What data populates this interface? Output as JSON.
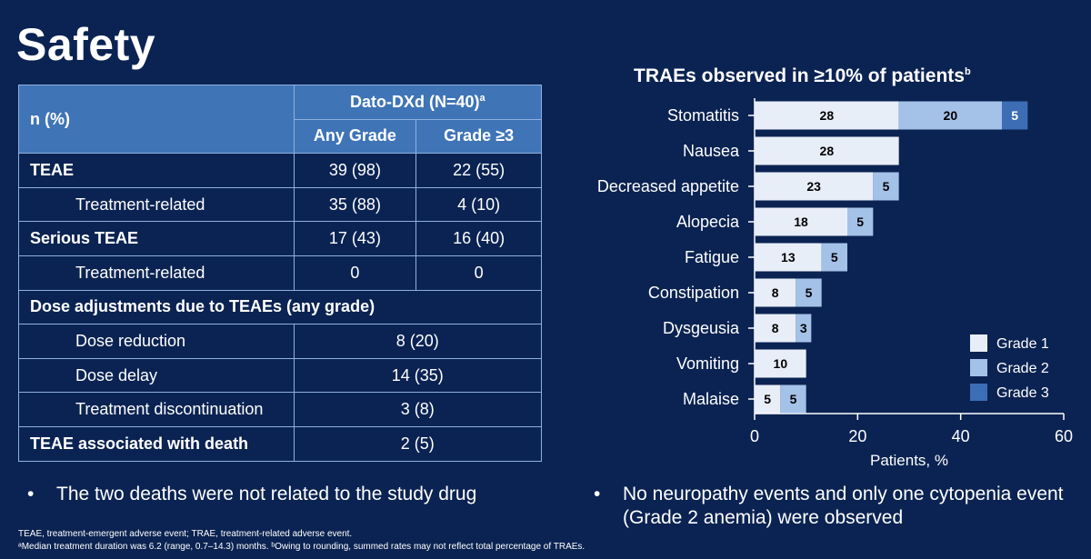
{
  "title": "Safety",
  "table": {
    "header_col": "n (%)",
    "group_header": "Dato-DXd (N=40)",
    "group_header_sup": "a",
    "sub_headers": [
      "Any Grade",
      "Grade ≥3"
    ],
    "rows": [
      {
        "label": "TEAE",
        "style": "bold",
        "values": [
          "39 (98)",
          "22 (55)"
        ]
      },
      {
        "label": "Treatment-related",
        "style": "indent",
        "values": [
          "35 (88)",
          "4 (10)"
        ]
      },
      {
        "label": "Serious TEAE",
        "style": "bold",
        "values": [
          "17 (43)",
          "16 (40)"
        ]
      },
      {
        "label": "Treatment-related",
        "style": "indent",
        "values": [
          "0",
          "0"
        ]
      },
      {
        "label": "Dose adjustments due to TEAEs (any grade)",
        "style": "section",
        "values": []
      },
      {
        "label": "Dose reduction",
        "style": "indent",
        "merged": "8 (20)"
      },
      {
        "label": "Dose delay",
        "style": "indent",
        "merged": "14 (35)"
      },
      {
        "label": "Treatment discontinuation",
        "style": "indent",
        "merged": "3 (8)"
      },
      {
        "label": "TEAE associated with death",
        "style": "bold",
        "merged": "2 (5)"
      }
    ]
  },
  "bullets": {
    "left": "The two deaths were not related to the study drug",
    "right": "No neuropathy events and only one cytopenia event (Grade 2 anemia) were observed",
    "marker": "•"
  },
  "footnotes": [
    "TEAE, treatment-emergent adverse event; TRAE, treatment-related adverse event.",
    "ᵃMedian treatment duration was 6.2 (range, 0.7–14.3) months. ᵇOwing to rounding, summed rates may not reflect total percentage of TRAEs."
  ],
  "chart_data": {
    "type": "bar",
    "orientation": "horizontal",
    "stacked": true,
    "title": "TRAEs observed in ≥10% of patients",
    "title_sup": "b",
    "xlabel": "Patients, %",
    "xlim": [
      0,
      60
    ],
    "xticks": [
      0,
      20,
      40,
      60
    ],
    "categories": [
      "Stomatitis",
      "Nausea",
      "Decreased appetite",
      "Alopecia",
      "Fatigue",
      "Constipation",
      "Dysgeusia",
      "Vomiting",
      "Malaise"
    ],
    "series": [
      {
        "name": "Grade 1",
        "color": "#e8eef8",
        "values": [
          28,
          28,
          23,
          18,
          13,
          8,
          8,
          10,
          5
        ]
      },
      {
        "name": "Grade 2",
        "color": "#a4c1e8",
        "values": [
          20,
          0,
          5,
          5,
          5,
          5,
          3,
          0,
          5
        ]
      },
      {
        "name": "Grade 3",
        "color": "#3c6db5",
        "values": [
          5,
          0,
          0,
          0,
          0,
          0,
          0,
          0,
          0
        ]
      }
    ],
    "legend_position": "bottom-right"
  }
}
